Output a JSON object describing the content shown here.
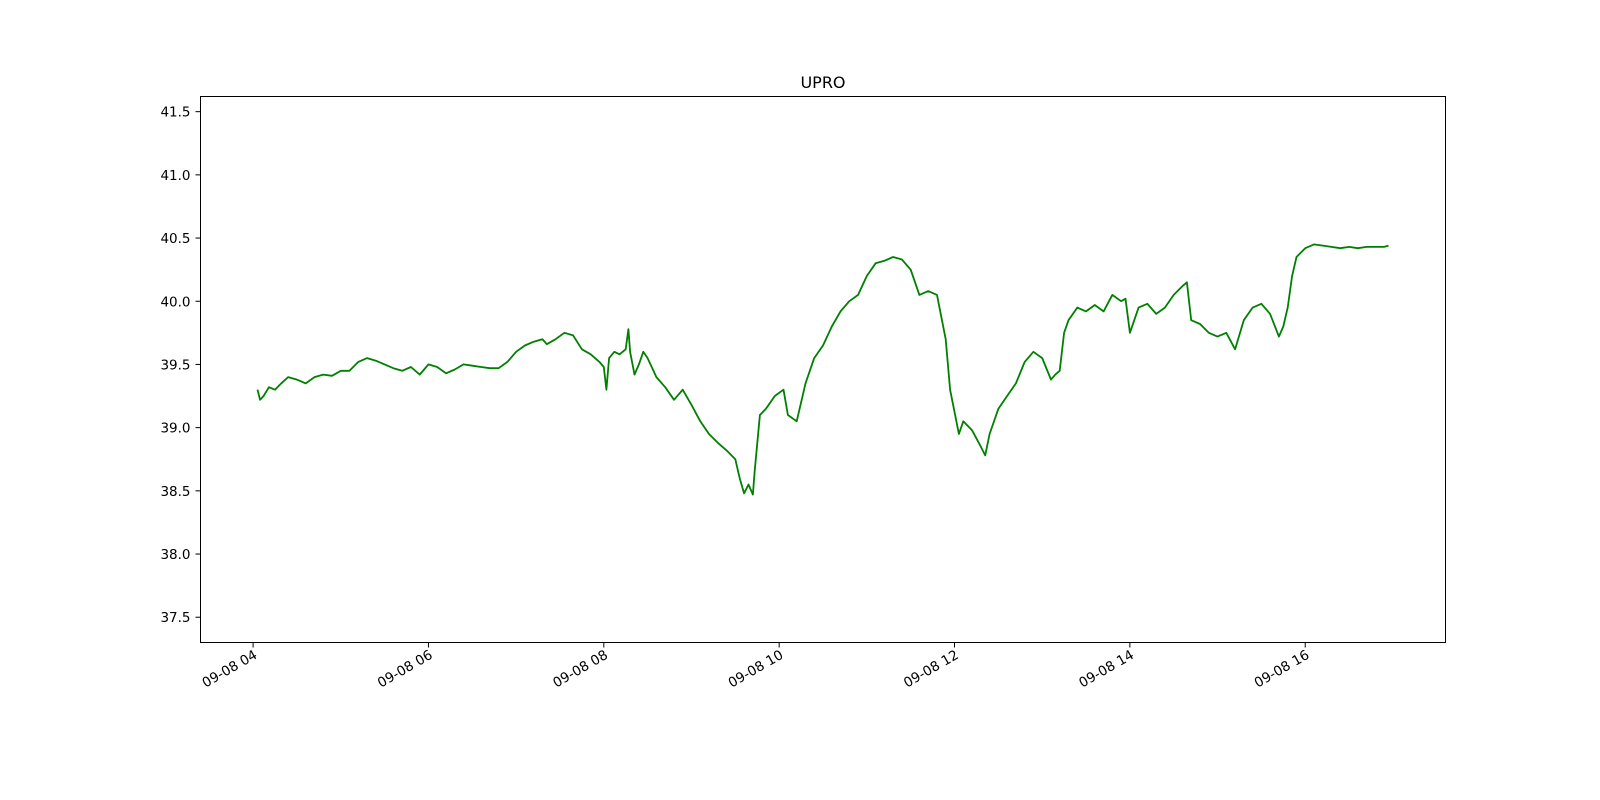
{
  "chart_data": {
    "type": "line",
    "title": "UPRO",
    "xlabel": "",
    "ylabel": "",
    "grid": false,
    "legend": "none",
    "x_ticks": [
      "09-08 04",
      "09-08 06",
      "09-08 08",
      "09-08 10",
      "09-08 12",
      "09-08 14",
      "09-08 16"
    ],
    "x_tick_hours": [
      4,
      6,
      8,
      10,
      12,
      14,
      16
    ],
    "xlim": [
      3.4,
      17.6
    ],
    "y_ticks": [
      "37.5",
      "38.0",
      "38.5",
      "39.0",
      "39.5",
      "40.0",
      "40.5",
      "41.0",
      "41.5"
    ],
    "ylim": [
      37.3,
      41.62
    ],
    "series": [
      {
        "color": "#008000",
        "x": [
          4.05,
          4.08,
          4.12,
          4.18,
          4.25,
          4.32,
          4.4,
          4.5,
          4.6,
          4.7,
          4.8,
          4.9,
          5.0,
          5.1,
          5.2,
          5.3,
          5.4,
          5.5,
          5.6,
          5.7,
          5.8,
          5.9,
          6.0,
          6.1,
          6.2,
          6.3,
          6.4,
          6.5,
          6.6,
          6.7,
          6.8,
          6.9,
          7.0,
          7.1,
          7.2,
          7.3,
          7.35,
          7.45,
          7.55,
          7.65,
          7.75,
          7.85,
          7.95,
          8.0,
          8.03,
          8.06,
          8.12,
          8.18,
          8.25,
          8.28,
          8.3,
          8.35,
          8.4,
          8.45,
          8.5,
          8.6,
          8.7,
          8.8,
          8.9,
          9.0,
          9.1,
          9.2,
          9.3,
          9.4,
          9.5,
          9.55,
          9.6,
          9.65,
          9.7,
          9.72,
          9.78,
          9.85,
          9.95,
          10.05,
          10.1,
          10.2,
          10.3,
          10.4,
          10.5,
          10.6,
          10.7,
          10.8,
          10.9,
          11.0,
          11.1,
          11.2,
          11.3,
          11.4,
          11.5,
          11.6,
          11.7,
          11.8,
          11.9,
          11.95,
          12.05,
          12.1,
          12.2,
          12.3,
          12.35,
          12.4,
          12.5,
          12.6,
          12.7,
          12.8,
          12.9,
          13.0,
          13.1,
          13.15,
          13.2,
          13.25,
          13.3,
          13.4,
          13.5,
          13.6,
          13.7,
          13.8,
          13.9,
          13.95,
          14.0,
          14.1,
          14.2,
          14.3,
          14.4,
          14.5,
          14.6,
          14.65,
          14.7,
          14.8,
          14.9,
          15.0,
          15.1,
          15.2,
          15.3,
          15.4,
          15.5,
          15.6,
          15.7,
          15.75,
          15.8,
          15.85,
          15.9,
          16.0,
          16.1,
          16.2,
          16.3,
          16.4,
          16.5,
          16.6,
          16.7,
          16.8,
          16.9,
          16.95
        ],
        "y": [
          39.3,
          39.22,
          39.25,
          39.32,
          39.3,
          39.35,
          39.4,
          39.38,
          39.35,
          39.4,
          39.42,
          39.41,
          39.45,
          39.45,
          39.52,
          39.55,
          39.53,
          39.5,
          39.47,
          39.45,
          39.48,
          39.42,
          39.5,
          39.48,
          39.43,
          39.46,
          39.5,
          39.49,
          39.48,
          39.47,
          39.47,
          39.52,
          39.6,
          39.65,
          39.68,
          39.7,
          39.66,
          39.7,
          39.75,
          39.73,
          39.62,
          39.58,
          39.52,
          39.48,
          39.3,
          39.55,
          39.6,
          39.58,
          39.62,
          39.78,
          39.6,
          39.42,
          39.5,
          39.6,
          39.55,
          39.4,
          39.32,
          39.22,
          39.3,
          39.18,
          39.05,
          38.95,
          38.88,
          38.82,
          38.75,
          38.6,
          38.48,
          38.55,
          38.47,
          38.65,
          39.1,
          39.15,
          39.25,
          39.3,
          39.1,
          39.05,
          39.35,
          39.55,
          39.65,
          39.8,
          39.92,
          40.0,
          40.05,
          40.2,
          40.3,
          40.32,
          40.35,
          40.33,
          40.25,
          40.05,
          40.08,
          40.05,
          39.7,
          39.3,
          38.95,
          39.05,
          38.98,
          38.85,
          38.78,
          38.95,
          39.15,
          39.25,
          39.35,
          39.52,
          39.6,
          39.55,
          39.38,
          39.42,
          39.45,
          39.75,
          39.85,
          39.95,
          39.92,
          39.97,
          39.92,
          40.05,
          40.0,
          40.02,
          39.75,
          39.95,
          39.98,
          39.9,
          39.95,
          40.05,
          40.12,
          40.15,
          39.85,
          39.82,
          39.75,
          39.72,
          39.75,
          39.62,
          39.85,
          39.95,
          39.98,
          39.9,
          39.72,
          39.8,
          39.95,
          40.2,
          40.35,
          40.42,
          40.45,
          40.44,
          40.43,
          40.42,
          40.43,
          40.42,
          40.43,
          40.43,
          40.43,
          40.44
        ]
      }
    ]
  }
}
